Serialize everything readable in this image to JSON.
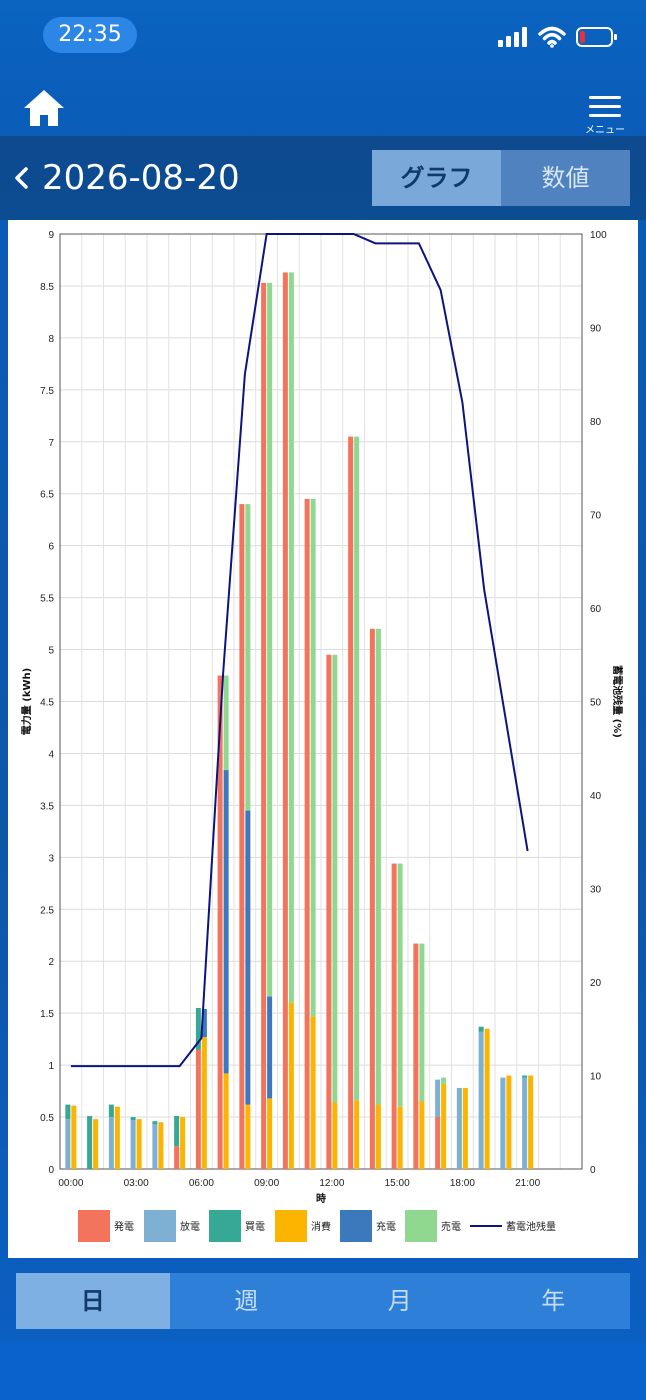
{
  "status": {
    "time": "22:35"
  },
  "header": {
    "menu_label": "メニュー"
  },
  "date": "2026-08-20",
  "view_toggle": {
    "graph": "グラフ",
    "values": "数値",
    "active": "graph"
  },
  "tabs": [
    {
      "label": "日",
      "active": true
    },
    {
      "label": "週",
      "active": false
    },
    {
      "label": "月",
      "active": false
    },
    {
      "label": "年",
      "active": false
    }
  ],
  "colors": {
    "generation": "#f4735c",
    "discharge": "#7eb0d4",
    "purchase": "#35a896",
    "consumption": "#fbb400",
    "charge": "#3c78bc",
    "sell": "#90d890",
    "battery": "#0c1480"
  },
  "chart_data": {
    "type": "bar",
    "stacked": true,
    "xlabel": "時",
    "ylabel": "電力量 (kWh)",
    "y2label": "蓄電池残量 (%)",
    "ylim": [
      0,
      9
    ],
    "y2lim": [
      0,
      100
    ],
    "yticks": [
      "0",
      "0.5",
      "1",
      "1.5",
      "2",
      "2.5",
      "3",
      "3.5",
      "4",
      "4.5",
      "5",
      "5.5",
      "6",
      "6.5",
      "7",
      "7.5",
      "8",
      "8.5",
      "9"
    ],
    "y2ticks": [
      "0",
      "10",
      "20",
      "30",
      "40",
      "50",
      "60",
      "70",
      "80",
      "90",
      "100"
    ],
    "xticks": [
      "00:00",
      "03:00",
      "06:00",
      "09:00",
      "12:00",
      "15:00",
      "18:00",
      "21:00"
    ],
    "legend": [
      "発電",
      "放電",
      "買電",
      "消費",
      "充電",
      "売電",
      "蓄電池残量"
    ],
    "grid": true,
    "hours": [
      0,
      1,
      2,
      3,
      4,
      5,
      6,
      7,
      8,
      9,
      10,
      11,
      12,
      13,
      14,
      15,
      16,
      17,
      18,
      19,
      20,
      21
    ],
    "supply": {
      "generation": [
        0,
        0,
        0,
        0,
        0,
        0.22,
        1.15,
        4.75,
        6.4,
        8.53,
        8.63,
        6.45,
        4.95,
        7.05,
        5.2,
        2.94,
        2.17,
        0.5,
        0,
        0,
        0,
        0
      ],
      "discharge": [
        0.48,
        0,
        0.5,
        0.47,
        0.43,
        0,
        0,
        0,
        0,
        0,
        0,
        0,
        0,
        0,
        0,
        0,
        0,
        0.36,
        0.78,
        1.32,
        0.88,
        0.88
      ],
      "purchase": [
        0.14,
        0.51,
        0.12,
        0.03,
        0.03,
        0.29,
        0.4,
        0,
        0,
        0,
        0,
        0,
        0,
        0,
        0,
        0,
        0,
        0,
        0,
        0.05,
        0,
        0.02
      ]
    },
    "demand": {
      "consumption": [
        0.61,
        0.48,
        0.6,
        0.48,
        0.45,
        0.5,
        1.27,
        0.92,
        0.62,
        0.68,
        1.6,
        1.47,
        0.64,
        0.66,
        0.62,
        0.6,
        0.65,
        0.82,
        0.78,
        1.35,
        0.9,
        0.9
      ],
      "charge": [
        0,
        0,
        0,
        0,
        0,
        0,
        0.27,
        2.92,
        2.83,
        0.98,
        0,
        0,
        0,
        0,
        0,
        0,
        0,
        0,
        0,
        0,
        0,
        0
      ],
      "sell": [
        0,
        0,
        0,
        0,
        0,
        0,
        0,
        0.91,
        2.95,
        6.87,
        7.03,
        4.98,
        4.31,
        6.39,
        4.58,
        2.34,
        1.52,
        0.06,
        0,
        0,
        0,
        0
      ]
    },
    "battery_pct": [
      [
        0,
        11
      ],
      [
        1,
        11
      ],
      [
        2,
        11
      ],
      [
        3,
        11
      ],
      [
        4,
        11
      ],
      [
        5,
        11
      ],
      [
        6,
        14
      ],
      [
        7,
        53
      ],
      [
        8,
        85
      ],
      [
        9,
        100
      ],
      [
        10,
        100
      ],
      [
        11,
        100
      ],
      [
        12,
        100
      ],
      [
        13,
        100
      ],
      [
        14,
        99
      ],
      [
        15,
        99
      ],
      [
        16,
        99
      ],
      [
        17,
        94
      ],
      [
        18,
        82
      ],
      [
        19,
        62
      ],
      [
        20,
        48
      ],
      [
        21,
        34
      ]
    ]
  }
}
